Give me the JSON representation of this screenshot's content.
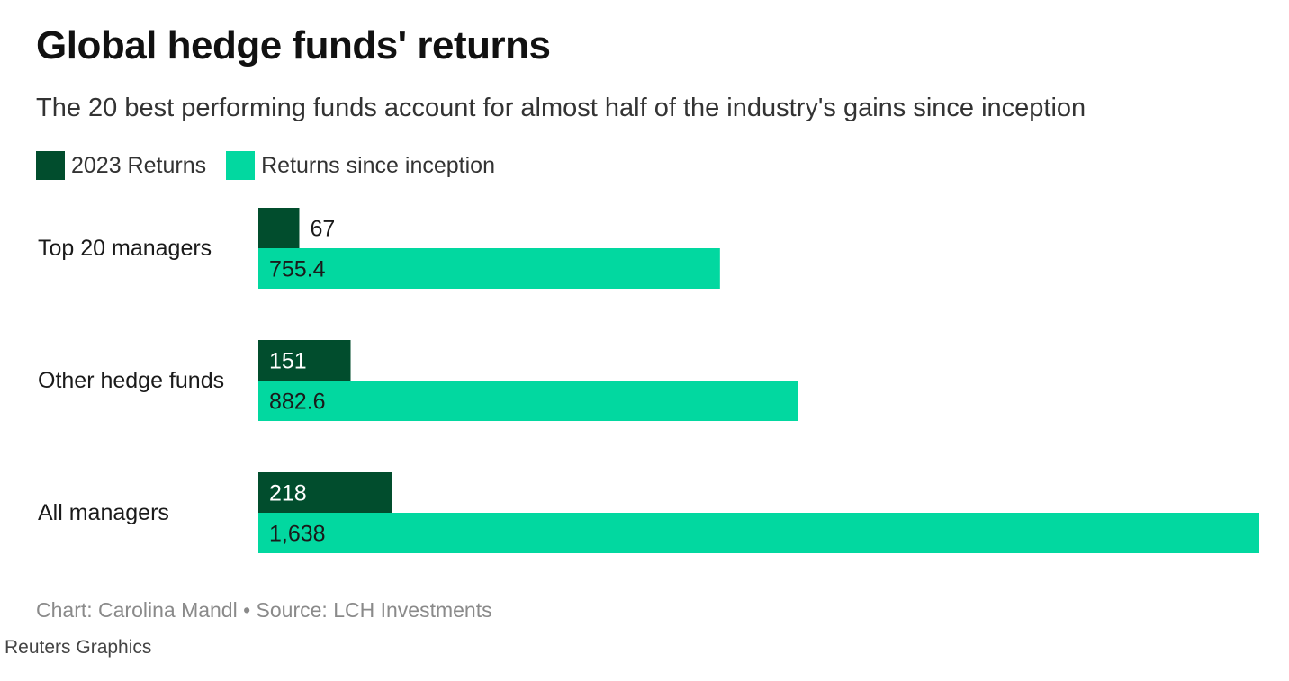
{
  "header": {
    "title": "Global hedge funds' returns",
    "subtitle": "The 20 best performing funds account for almost half of the industry's gains since inception"
  },
  "colors": {
    "returns_2023": "#014d2d",
    "returns_since_inception": "#02d8a0",
    "label_on_dark": "#ffffff",
    "label_on_light": "#1a1a1a"
  },
  "chart_data": {
    "type": "bar",
    "orientation": "horizontal",
    "categories": [
      "Top 20 managers",
      "Other hedge funds",
      "All managers"
    ],
    "series": [
      {
        "name": "2023 Returns",
        "values": [
          67,
          151,
          218
        ],
        "labels": [
          "67",
          "151",
          "218"
        ]
      },
      {
        "name": "Returns since inception",
        "values": [
          755.4,
          882.6,
          1638
        ],
        "labels": [
          "755.4",
          "882.6",
          "1,638"
        ]
      }
    ],
    "xlim": [
      0,
      1638
    ],
    "grid": false,
    "legend": "top-left"
  },
  "footer": {
    "source": "Chart: Carolina Mandl • Source: LCH Investments",
    "credit": "Reuters Graphics"
  }
}
